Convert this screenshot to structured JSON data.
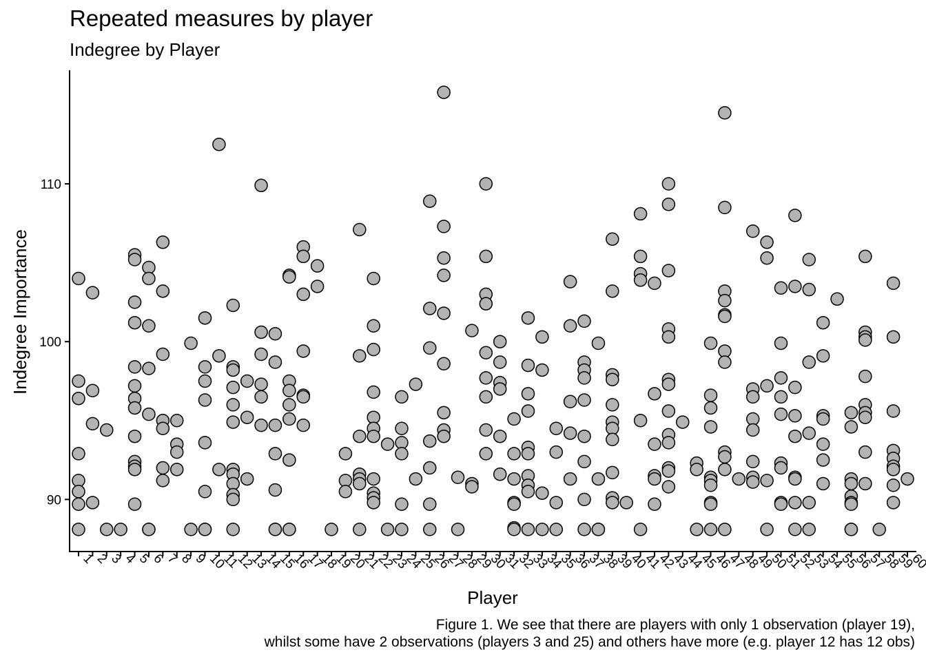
{
  "title": "Repeated measures by player",
  "subtitle": "Indegree by Player",
  "caption": {
    "line1": "Figure 1. We see that there are players with only 1 observation (player 19),",
    "line2": "whilst some have 2 observations (players 3 and 25) and others have more (e.g. player 12 has 12 obs)"
  },
  "chart_data": {
    "type": "scatter",
    "xlabel": "Player",
    "ylabel": "Indegree Importance",
    "x_categories": [
      "1",
      "2",
      "3",
      "4",
      "5",
      "6",
      "7",
      "8",
      "9",
      "10",
      "11",
      "12",
      "13",
      "14",
      "15",
      "16",
      "17",
      "18",
      "19",
      "20",
      "21",
      "22",
      "23",
      "24",
      "25",
      "26",
      "27",
      "28",
      "29",
      "30",
      "31",
      "32",
      "33",
      "34",
      "35",
      "36",
      "37",
      "38",
      "39",
      "40",
      "41",
      "42",
      "43",
      "44",
      "45",
      "46",
      "47",
      "48",
      "49",
      "50",
      "51",
      "52",
      "53",
      "54",
      "55",
      "56",
      "57",
      "58",
      "59",
      "60"
    ],
    "ylim": [
      86.7,
      117.2
    ],
    "yticks": [
      90,
      100,
      110
    ],
    "grid": false,
    "point_fill": "#b3b3b3",
    "point_stroke": "#000000",
    "points": [
      {
        "x": 1,
        "y": [
          104.0,
          97.5,
          96.4,
          92.9,
          91.2,
          90.5,
          89.7,
          88.1
        ]
      },
      {
        "x": 2,
        "y": [
          103.1,
          96.9,
          94.8,
          89.8
        ]
      },
      {
        "x": 3,
        "y": [
          94.4,
          88.1
        ]
      },
      {
        "x": 4,
        "y": [
          88.1
        ]
      },
      {
        "x": 5,
        "y": [
          105.5,
          105.2,
          102.5,
          101.2,
          98.4,
          97.2,
          96.4,
          95.8,
          94.0,
          92.4,
          92.1,
          91.9,
          89.7
        ]
      },
      {
        "x": 6,
        "y": [
          104.7,
          104.0,
          101.0,
          98.3,
          95.4,
          88.1,
          88.1
        ]
      },
      {
        "x": 7,
        "y": [
          106.3,
          103.2,
          99.2,
          95.0,
          94.5,
          92.0,
          91.2
        ]
      },
      {
        "x": 8,
        "y": [
          95.0,
          93.5,
          93.0,
          91.9
        ]
      },
      {
        "x": 9,
        "y": [
          99.9,
          88.1
        ]
      },
      {
        "x": 10,
        "y": [
          101.5,
          98.4,
          97.5,
          96.3,
          93.6,
          90.5,
          88.1,
          88.1
        ]
      },
      {
        "x": 11,
        "y": [
          112.5,
          99.1,
          91.9
        ]
      },
      {
        "x": 12,
        "y": [
          102.3,
          98.4,
          98.2,
          97.1,
          96.0,
          94.9,
          91.9,
          91.6,
          91.0,
          90.3,
          90.0,
          88.1
        ]
      },
      {
        "x": 13,
        "y": [
          97.5,
          95.2,
          91.3
        ]
      },
      {
        "x": 14,
        "y": [
          109.9,
          100.6,
          99.2,
          97.3,
          96.5,
          94.7
        ]
      },
      {
        "x": 15,
        "y": [
          100.5,
          98.7,
          94.7,
          92.9,
          90.6,
          88.1,
          88.1
        ]
      },
      {
        "x": 16,
        "y": [
          104.2,
          104.1,
          97.5,
          96.9,
          96.0,
          95.1,
          92.5,
          88.1,
          88.1
        ]
      },
      {
        "x": 17,
        "y": [
          106.0,
          105.4,
          103.0,
          99.4,
          96.6,
          96.5,
          94.7
        ]
      },
      {
        "x": 18,
        "y": [
          104.8,
          103.5
        ]
      },
      {
        "x": 19,
        "y": [
          88.1
        ]
      },
      {
        "x": 20,
        "y": [
          92.9,
          91.2,
          90.5
        ]
      },
      {
        "x": 21,
        "y": [
          107.1,
          99.1,
          94.0,
          91.6,
          91.3,
          91.0,
          88.1
        ]
      },
      {
        "x": 22,
        "y": [
          104.0,
          101.0,
          99.5,
          96.8,
          95.2,
          94.5,
          94.0,
          91.3,
          90.4,
          90.1,
          89.8
        ]
      },
      {
        "x": 23,
        "y": [
          93.5,
          88.1
        ]
      },
      {
        "x": 24,
        "y": [
          96.5,
          94.5,
          93.6,
          92.9,
          89.7,
          88.1
        ]
      },
      {
        "x": 25,
        "y": [
          97.3,
          91.3
        ]
      },
      {
        "x": 26,
        "y": [
          108.9,
          102.1,
          99.6,
          93.7,
          92.0,
          89.7,
          88.1
        ]
      },
      {
        "x": 27,
        "y": [
          115.8,
          107.3,
          105.3,
          104.2,
          101.8,
          98.6,
          95.5,
          94.4,
          94.0
        ]
      },
      {
        "x": 28,
        "y": [
          91.4,
          88.1
        ]
      },
      {
        "x": 29,
        "y": [
          100.7,
          91.0,
          90.8
        ]
      },
      {
        "x": 30,
        "y": [
          110.0,
          105.4,
          103.0,
          102.4,
          99.3,
          97.7,
          96.5,
          94.4,
          92.9
        ]
      },
      {
        "x": 31,
        "y": [
          100.0,
          98.7,
          97.4,
          97.0,
          94.0,
          91.6
        ]
      },
      {
        "x": 32,
        "y": [
          95.1,
          92.9,
          91.3,
          89.8,
          89.7,
          88.2,
          88.1
        ]
      },
      {
        "x": 33,
        "y": [
          101.5,
          98.5,
          96.7,
          95.6,
          93.3,
          92.9,
          91.5,
          90.9,
          90.5,
          88.1
        ]
      },
      {
        "x": 34,
        "y": [
          100.3,
          98.2,
          90.4,
          88.1
        ]
      },
      {
        "x": 35,
        "y": [
          94.5,
          93.0,
          89.8,
          88.1
        ]
      },
      {
        "x": 36,
        "y": [
          103.8,
          101.0,
          96.2,
          94.2,
          91.3
        ]
      },
      {
        "x": 37,
        "y": [
          101.3,
          98.7,
          98.2,
          97.7,
          96.3,
          94.0,
          92.4,
          90.0,
          88.1
        ]
      },
      {
        "x": 38,
        "y": [
          99.9,
          91.3,
          88.1,
          88.1
        ]
      },
      {
        "x": 39,
        "y": [
          106.5,
          103.2,
          97.9,
          97.6,
          96.0,
          94.9,
          94.5,
          93.8,
          91.7,
          90.1,
          89.8
        ]
      },
      {
        "x": 40,
        "y": [
          89.8
        ]
      },
      {
        "x": 41,
        "y": [
          108.1,
          105.4,
          104.3,
          103.9,
          95.0,
          88.1
        ]
      },
      {
        "x": 42,
        "y": [
          103.7,
          96.7,
          93.5,
          91.5,
          91.3,
          89.7
        ]
      },
      {
        "x": 43,
        "y": [
          110.0,
          108.7,
          104.5,
          100.8,
          100.3,
          97.6,
          97.3,
          95.6,
          94.1,
          93.6,
          92.0,
          91.8,
          90.8
        ]
      },
      {
        "x": 44,
        "y": [
          94.9
        ]
      },
      {
        "x": 45,
        "y": [
          92.3,
          91.9,
          88.1
        ]
      },
      {
        "x": 46,
        "y": [
          99.9,
          96.6,
          95.8,
          94.6,
          91.4,
          91.2,
          90.9,
          89.8,
          89.7,
          88.1
        ]
      },
      {
        "x": 47,
        "y": [
          114.5,
          108.5,
          103.2,
          102.6,
          101.7,
          101.6,
          99.4,
          98.7,
          93.0,
          92.7,
          91.9,
          88.1
        ]
      },
      {
        "x": 48,
        "y": [
          91.3
        ]
      },
      {
        "x": 49,
        "y": [
          107.0,
          97.0,
          96.5,
          95.1,
          94.4,
          92.4,
          91.4,
          91.1
        ]
      },
      {
        "x": 50,
        "y": [
          106.3,
          105.3,
          97.2,
          91.2,
          88.1
        ]
      },
      {
        "x": 51,
        "y": [
          103.4,
          99.9,
          97.7,
          96.5,
          95.4,
          92.3,
          92.0,
          89.8,
          89.7
        ]
      },
      {
        "x": 52,
        "y": [
          108.0,
          103.5,
          97.1,
          95.3,
          94.0,
          91.4,
          91.3,
          89.8,
          88.1
        ]
      },
      {
        "x": 53,
        "y": [
          105.2,
          103.3,
          98.7,
          94.2,
          89.8,
          88.1
        ]
      },
      {
        "x": 54,
        "y": [
          101.2,
          99.1,
          95.3,
          95.1,
          93.5,
          92.5,
          91.0
        ]
      },
      {
        "x": 55,
        "y": [
          102.7
        ]
      },
      {
        "x": 56,
        "y": [
          95.5,
          94.6,
          91.3,
          91.0,
          90.2,
          89.8,
          89.7,
          88.1,
          88.1
        ]
      },
      {
        "x": 57,
        "y": [
          105.4,
          100.6,
          100.3,
          100.1,
          97.8,
          96.0,
          95.5,
          95.2,
          93.0,
          91.0
        ]
      },
      {
        "x": 58,
        "y": [
          88.1
        ]
      },
      {
        "x": 59,
        "y": [
          103.7,
          100.3,
          95.6,
          93.1,
          92.6,
          92.1,
          91.9,
          90.9,
          89.8
        ]
      },
      {
        "x": 60,
        "y": [
          91.3
        ]
      }
    ]
  }
}
